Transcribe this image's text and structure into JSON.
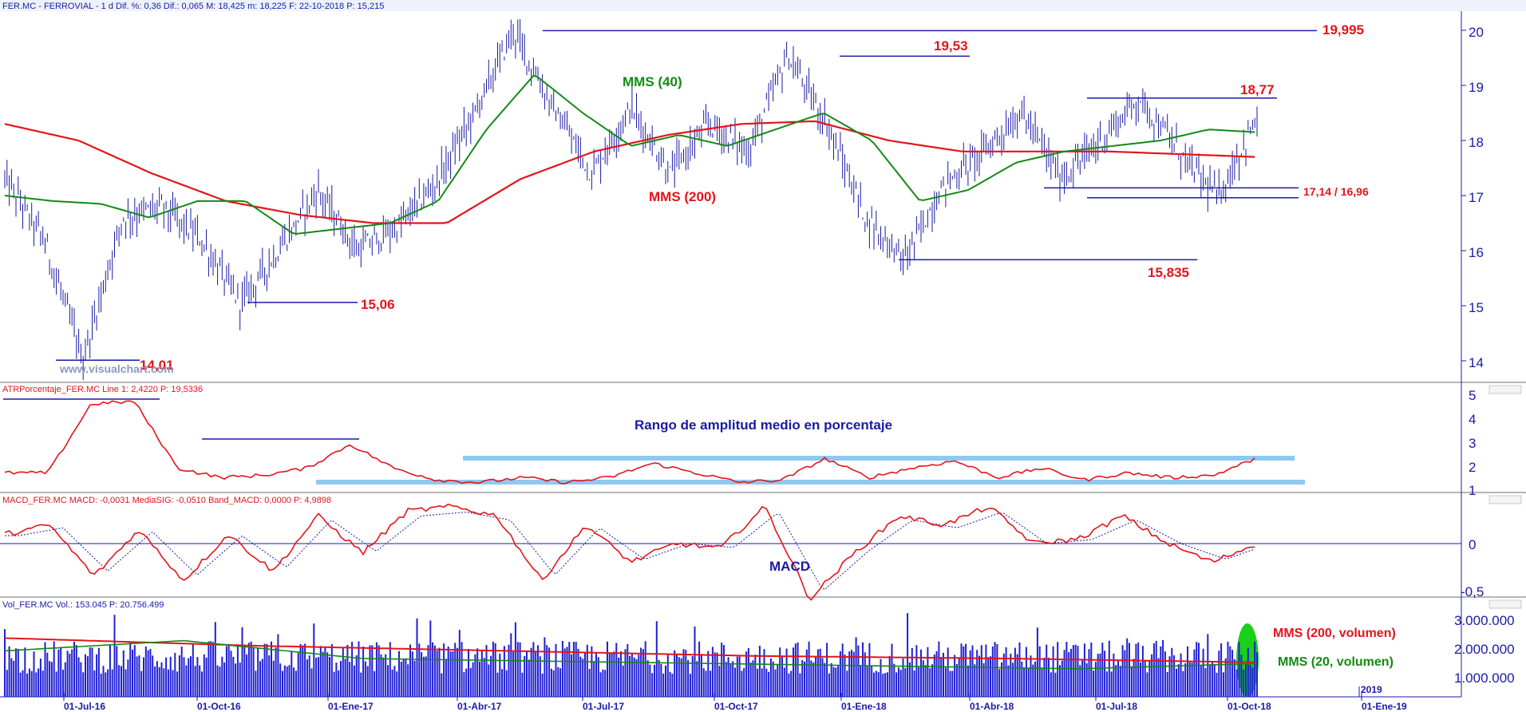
{
  "panels": {
    "price": {
      "header": "FER.MC - FERROVIAL -  1 d  Dif. %: 0,36  Dif.: 0,065  M: 18,425  m: 18,225  F: 22-10-2018  P: 15,215",
      "watermark": "www.visualchart.com",
      "yticks": [
        "20",
        "19",
        "18",
        "17",
        "16",
        "15",
        "14"
      ],
      "annotations": {
        "ma40": "MMS (40)",
        "ma200": "MMS (200)",
        "l19995": "19,995",
        "l1953": "19,53",
        "l1877": "18,77",
        "l1714": "17,14 / 16,96",
        "l15835": "15,835",
        "l1506": "15,06",
        "l1401": "14,01"
      }
    },
    "atr": {
      "header": "ATRPorcentaje_FER.MC  Line 1: 2,4220  P: 19,5336",
      "title": "Rango de amplitud medio en porcentaje",
      "yticks": [
        "5",
        "4",
        "3",
        "2",
        "1"
      ]
    },
    "macd": {
      "header": "MACD_FER.MC  MACD: -0,0031  MediaSIG: -0,0510  Band_MACD: 0,0000  P: 4,9898",
      "label": "MACD",
      "yticks": [
        "0",
        "-0,5"
      ]
    },
    "volume": {
      "header": "Vol_FER.MC  Vol.: 153.045  P: 20.756.499",
      "ma200": "MMS (200, volumen)",
      "ma20": "MMS (20, volumen)",
      "yticks": [
        "3.000.000",
        "2.000.000",
        "1.000.000"
      ]
    }
  },
  "xaxis": {
    "labels": [
      "01-Jul-16",
      "01-Oct-16",
      "01-Ene-17",
      "01-Abr-17",
      "01-Jul-17",
      "01-Oct-17",
      "01-Ene-18",
      "01-Abr-18",
      "01-Jul-18",
      "01-Oct-18",
      "01-Ene-19"
    ],
    "year_marker": "2019"
  },
  "colors": {
    "price": "#1a1aa6",
    "ma40": "#138a13",
    "ma200": "#e3141b",
    "band": "#8fc8f0",
    "highlight": "#1bd01b"
  },
  "chart_data": {
    "type": "line",
    "x_dates": [
      "2016-07-01",
      "2016-10-01",
      "2017-01-01",
      "2017-04-01",
      "2017-07-01",
      "2017-10-01",
      "2018-01-01",
      "2018-04-01",
      "2018-07-01",
      "2018-10-01",
      "2019-01-01"
    ],
    "price_keypoints": [
      17.3,
      16.2,
      14.01,
      16.6,
      16.8,
      16.2,
      15.06,
      16.0,
      17.1,
      16.0,
      16.4,
      17.2,
      18.5,
      19.995,
      18.6,
      17.4,
      18.6,
      17.4,
      18.3,
      17.8,
      19.53,
      18.3,
      16.6,
      15.835,
      17.2,
      17.8,
      18.5,
      17.3,
      18.0,
      18.77,
      17.8,
      16.96,
      18.4
    ],
    "ma40_keypoints": [
      17.0,
      16.9,
      16.85,
      16.6,
      16.9,
      16.9,
      16.3,
      16.4,
      16.5,
      16.9,
      18.2,
      19.2,
      18.5,
      17.9,
      18.1,
      17.9,
      18.2,
      18.5,
      18.0,
      16.9,
      17.1,
      17.6,
      17.8,
      17.9,
      18.0,
      18.2,
      18.15
    ],
    "ma200_keypoints": [
      18.3,
      18.0,
      17.4,
      16.9,
      16.65,
      16.5,
      16.5,
      17.3,
      17.8,
      18.1,
      18.3,
      18.35,
      18.0,
      17.8,
      17.8,
      17.8,
      17.75,
      17.7
    ],
    "levels": [
      19.995,
      19.53,
      18.77,
      17.14,
      16.96,
      15.835,
      15.06,
      14.01
    ],
    "atr_keypoints": [
      1.8,
      1.8,
      4.7,
      4.8,
      2.0,
      1.6,
      1.7,
      2.0,
      3.0,
      2.0,
      1.5,
      1.4,
      1.6,
      1.4,
      1.6,
      2.2,
      1.8,
      1.4,
      1.5,
      2.4,
      1.6,
      2.0,
      2.3,
      1.6,
      2.0,
      1.5,
      1.8,
      1.6,
      1.7,
      2.42
    ],
    "macd_keypoints": [
      0.1,
      0.2,
      -0.35,
      0.15,
      -0.4,
      0.1,
      -0.3,
      0.3,
      -0.1,
      0.35,
      0.4,
      0.3,
      -0.4,
      0.2,
      -0.2,
      0.0,
      -0.05,
      0.4,
      -0.6,
      -0.1,
      0.3,
      0.2,
      0.4,
      0.0,
      0.05,
      0.3,
      0.0,
      -0.2,
      0.0
    ],
    "volume_ma200_keypoints": [
      2300000,
      2000000,
      1800000,
      1600000,
      1500000,
      1350000
    ],
    "volume_ma20_keypoints": [
      1800000,
      2200000,
      1500000,
      1400000,
      1300000,
      1200000,
      1100000,
      1300000
    ]
  }
}
